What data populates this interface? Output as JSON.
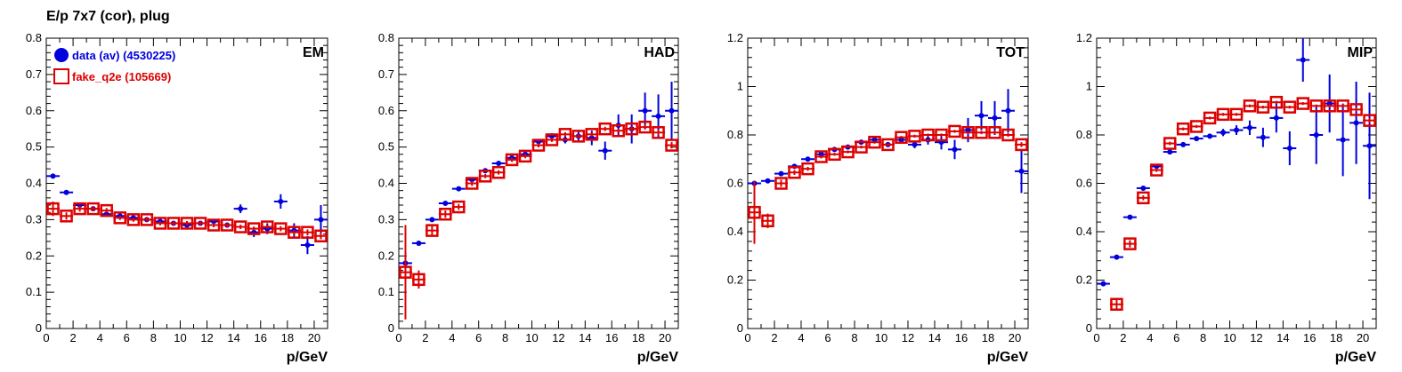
{
  "page_title": "E/p 7x7 (cor), plug",
  "colors": {
    "data": "#0000dd",
    "fake": "#dd0000"
  },
  "legend": [
    {
      "label": "data (av) (4530225)",
      "marker": "filled-circle",
      "color": "#0000dd"
    },
    {
      "label": "fake_q2e (105669)",
      "marker": "open-square",
      "color": "#dd0000"
    }
  ],
  "chart_data": [
    {
      "type": "scatter",
      "title": "EM",
      "xlabel": "p/GeV",
      "ylabel": "",
      "xlim": [
        0,
        21
      ],
      "ylim": [
        0,
        0.8
      ],
      "xticks": [
        0,
        2,
        4,
        6,
        8,
        10,
        12,
        14,
        16,
        18,
        20
      ],
      "yticks": [
        0,
        0.1,
        0.2,
        0.3,
        0.4,
        0.5,
        0.6,
        0.7,
        0.8
      ],
      "ytick_labels": [
        "0",
        "0.1",
        "0.2",
        "0.3",
        "0.4",
        "0.5",
        "0.6",
        "0.7",
        "0.8"
      ],
      "grid": false,
      "legend_position": "top-left",
      "series": [
        {
          "name": "data (av) (4530225)",
          "x": [
            0.5,
            1.5,
            2.5,
            3.5,
            4.5,
            5.5,
            6.5,
            7.5,
            8.5,
            9.5,
            10.5,
            11.5,
            12.5,
            13.5,
            14.5,
            15.5,
            16.5,
            17.5,
            18.5,
            19.5,
            20.5
          ],
          "y": [
            0.42,
            0.375,
            0.34,
            0.33,
            0.315,
            0.31,
            0.305,
            0.3,
            0.295,
            0.29,
            0.285,
            0.29,
            0.295,
            0.285,
            0.33,
            0.265,
            0.275,
            0.35,
            0.27,
            0.23,
            0.3
          ],
          "yerr": [
            0.005,
            0.004,
            0.004,
            0.004,
            0.004,
            0.004,
            0.004,
            0.004,
            0.005,
            0.005,
            0.005,
            0.005,
            0.006,
            0.007,
            0.012,
            0.013,
            0.015,
            0.02,
            0.02,
            0.025,
            0.04
          ]
        },
        {
          "name": "fake_q2e (105669)",
          "x": [
            0.5,
            1.5,
            2.5,
            3.5,
            4.5,
            5.5,
            6.5,
            7.5,
            8.5,
            9.5,
            10.5,
            11.5,
            12.5,
            13.5,
            14.5,
            15.5,
            16.5,
            17.5,
            18.5,
            19.5,
            20.5
          ],
          "y": [
            0.33,
            0.31,
            0.33,
            0.33,
            0.325,
            0.305,
            0.3,
            0.3,
            0.29,
            0.29,
            0.29,
            0.29,
            0.285,
            0.285,
            0.28,
            0.275,
            0.28,
            0.275,
            0.265,
            0.265,
            0.255
          ],
          "yerr": [
            0.02,
            0.01,
            0.008,
            0.007,
            0.007,
            0.006,
            0.006,
            0.006,
            0.006,
            0.006,
            0.006,
            0.006,
            0.006,
            0.006,
            0.006,
            0.006,
            0.006,
            0.007,
            0.007,
            0.008,
            0.009
          ]
        }
      ]
    },
    {
      "type": "scatter",
      "title": "HAD",
      "xlabel": "p/GeV",
      "ylabel": "",
      "xlim": [
        0,
        21
      ],
      "ylim": [
        0,
        0.8
      ],
      "xticks": [
        0,
        2,
        4,
        6,
        8,
        10,
        12,
        14,
        16,
        18,
        20
      ],
      "yticks": [
        0,
        0.1,
        0.2,
        0.3,
        0.4,
        0.5,
        0.6,
        0.7,
        0.8
      ],
      "ytick_labels": [
        "0",
        "0.1",
        "0.2",
        "0.3",
        "0.4",
        "0.5",
        "0.6",
        "0.7",
        "0.8"
      ],
      "grid": false,
      "series": [
        {
          "name": "data (av) (4530225)",
          "x": [
            0.5,
            1.5,
            2.5,
            3.5,
            4.5,
            5.5,
            6.5,
            7.5,
            8.5,
            9.5,
            10.5,
            11.5,
            12.5,
            13.5,
            14.5,
            15.5,
            16.5,
            17.5,
            18.5,
            19.5,
            20.5
          ],
          "y": [
            0.18,
            0.235,
            0.3,
            0.345,
            0.385,
            0.41,
            0.435,
            0.455,
            0.47,
            0.48,
            0.515,
            0.53,
            0.52,
            0.53,
            0.525,
            0.49,
            0.56,
            0.55,
            0.6,
            0.585,
            0.6
          ],
          "yerr": [
            0.005,
            0.004,
            0.004,
            0.004,
            0.004,
            0.004,
            0.005,
            0.005,
            0.006,
            0.006,
            0.007,
            0.008,
            0.01,
            0.012,
            0.02,
            0.025,
            0.03,
            0.04,
            0.05,
            0.06,
            0.08
          ]
        },
        {
          "name": "fake_q2e (105669)",
          "x": [
            0.5,
            1.5,
            2.5,
            3.5,
            4.5,
            5.5,
            6.5,
            7.5,
            8.5,
            9.5,
            10.5,
            11.5,
            12.5,
            13.5,
            14.5,
            15.5,
            16.5,
            17.5,
            18.5,
            19.5,
            20.5
          ],
          "y": [
            0.155,
            0.135,
            0.27,
            0.315,
            0.335,
            0.4,
            0.42,
            0.43,
            0.465,
            0.475,
            0.505,
            0.52,
            0.535,
            0.53,
            0.535,
            0.55,
            0.545,
            0.55,
            0.555,
            0.54,
            0.505
          ],
          "yerr": [
            0.13,
            0.025,
            0.015,
            0.01,
            0.008,
            0.007,
            0.006,
            0.006,
            0.006,
            0.006,
            0.006,
            0.006,
            0.006,
            0.006,
            0.006,
            0.006,
            0.006,
            0.007,
            0.007,
            0.008,
            0.009
          ]
        }
      ]
    },
    {
      "type": "scatter",
      "title": "TOT",
      "xlabel": "p/GeV",
      "ylabel": "",
      "xlim": [
        0,
        21
      ],
      "ylim": [
        0,
        1.2
      ],
      "xticks": [
        0,
        2,
        4,
        6,
        8,
        10,
        12,
        14,
        16,
        18,
        20
      ],
      "yticks": [
        0,
        0.2,
        0.4,
        0.6,
        0.8,
        1.0,
        1.2
      ],
      "ytick_labels": [
        "0",
        "0.2",
        "0.4",
        "0.6",
        "0.8",
        "1",
        "1.2"
      ],
      "grid": false,
      "series": [
        {
          "name": "data (av) (4530225)",
          "x": [
            0.5,
            1.5,
            2.5,
            3.5,
            4.5,
            5.5,
            6.5,
            7.5,
            8.5,
            9.5,
            10.5,
            11.5,
            12.5,
            13.5,
            14.5,
            15.5,
            16.5,
            17.5,
            18.5,
            19.5,
            20.5
          ],
          "y": [
            0.6,
            0.61,
            0.64,
            0.67,
            0.7,
            0.72,
            0.74,
            0.75,
            0.77,
            0.78,
            0.76,
            0.78,
            0.76,
            0.78,
            0.77,
            0.74,
            0.82,
            0.88,
            0.87,
            0.9,
            0.65
          ],
          "yerr": [
            0.005,
            0.004,
            0.004,
            0.004,
            0.004,
            0.005,
            0.005,
            0.006,
            0.007,
            0.008,
            0.009,
            0.01,
            0.015,
            0.02,
            0.03,
            0.04,
            0.05,
            0.06,
            0.07,
            0.09,
            0.09
          ]
        },
        {
          "name": "fake_q2e (105669)",
          "x": [
            0.5,
            1.5,
            2.5,
            3.5,
            4.5,
            5.5,
            6.5,
            7.5,
            8.5,
            9.5,
            10.5,
            11.5,
            12.5,
            13.5,
            14.5,
            15.5,
            16.5,
            17.5,
            18.5,
            19.5,
            20.5
          ],
          "y": [
            0.48,
            0.445,
            0.6,
            0.645,
            0.66,
            0.71,
            0.72,
            0.73,
            0.75,
            0.77,
            0.76,
            0.79,
            0.795,
            0.8,
            0.8,
            0.815,
            0.81,
            0.81,
            0.81,
            0.8,
            0.76
          ],
          "yerr": [
            0.13,
            0.03,
            0.015,
            0.01,
            0.008,
            0.007,
            0.006,
            0.006,
            0.006,
            0.006,
            0.006,
            0.006,
            0.006,
            0.006,
            0.006,
            0.006,
            0.006,
            0.007,
            0.007,
            0.008,
            0.01
          ]
        }
      ]
    },
    {
      "type": "scatter",
      "title": "MIP",
      "xlabel": "p/GeV",
      "ylabel": "",
      "xlim": [
        0,
        21
      ],
      "ylim": [
        0,
        1.2
      ],
      "xticks": [
        0,
        2,
        4,
        6,
        8,
        10,
        12,
        14,
        16,
        18,
        20
      ],
      "yticks": [
        0,
        0.2,
        0.4,
        0.6,
        0.8,
        1.0,
        1.2
      ],
      "ytick_labels": [
        "0",
        "0.2",
        "0.4",
        "0.6",
        "0.8",
        "1",
        "1.2"
      ],
      "grid": false,
      "series": [
        {
          "name": "data (av) (4530225)",
          "x": [
            0.5,
            1.5,
            2.5,
            3.5,
            4.5,
            5.5,
            6.5,
            7.5,
            8.5,
            9.5,
            10.5,
            11.5,
            12.5,
            13.5,
            14.5,
            15.5,
            16.5,
            17.5,
            18.5,
            19.5,
            20.5
          ],
          "y": [
            0.185,
            0.295,
            0.46,
            0.58,
            0.67,
            0.73,
            0.76,
            0.785,
            0.795,
            0.81,
            0.82,
            0.83,
            0.79,
            0.87,
            0.745,
            1.11,
            0.8,
            0.93,
            0.78,
            0.85,
            0.755
          ],
          "yerr": [
            0.005,
            0.004,
            0.004,
            0.004,
            0.005,
            0.006,
            0.007,
            0.008,
            0.01,
            0.015,
            0.02,
            0.03,
            0.04,
            0.06,
            0.07,
            0.09,
            0.12,
            0.12,
            0.15,
            0.17,
            0.22
          ]
        },
        {
          "name": "fake_q2e (105669)",
          "x": [
            0.5,
            1.5,
            2.5,
            3.5,
            4.5,
            5.5,
            6.5,
            7.5,
            8.5,
            9.5,
            10.5,
            11.5,
            12.5,
            13.5,
            14.5,
            15.5,
            16.5,
            17.5,
            18.5,
            19.5,
            20.5
          ],
          "y": [
            null,
            0.1,
            0.35,
            0.54,
            0.655,
            0.765,
            0.825,
            0.835,
            0.87,
            0.885,
            0.885,
            0.92,
            0.915,
            0.935,
            0.915,
            0.93,
            0.92,
            0.92,
            0.92,
            0.905,
            0.86
          ],
          "yerr": [
            0,
            0.025,
            0.015,
            0.01,
            0.008,
            0.007,
            0.006,
            0.006,
            0.006,
            0.006,
            0.006,
            0.006,
            0.006,
            0.006,
            0.006,
            0.006,
            0.006,
            0.007,
            0.007,
            0.008,
            0.01
          ]
        }
      ]
    }
  ]
}
